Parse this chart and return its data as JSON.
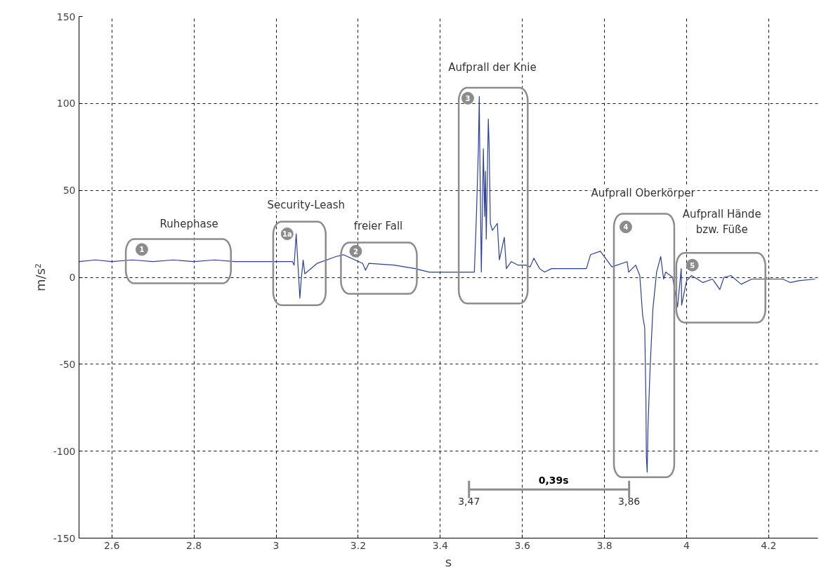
{
  "chart_data": {
    "type": "line",
    "xlabel": "s",
    "ylabel": "m/s²",
    "xlim": [
      2.52,
      4.32
    ],
    "ylim": [
      -150,
      150
    ],
    "xticks": [
      2.6,
      2.8,
      3,
      3.2,
      3.4,
      3.6,
      3.8,
      4,
      4.2
    ],
    "yticks": [
      -150,
      -100,
      -50,
      0,
      50,
      100,
      150
    ],
    "grid": true,
    "line_style": "solid",
    "marker": "none",
    "series": [
      {
        "color": "#2b3ea0",
        "x": [
          2.52,
          2.56,
          2.6,
          2.65,
          2.7,
          2.75,
          2.8,
          2.85,
          2.9,
          2.95,
          3.0,
          3.04,
          3.044,
          3.049,
          3.058,
          3.061,
          3.066,
          3.07,
          3.075,
          3.1,
          3.147,
          3.164,
          3.211,
          3.218,
          3.226,
          3.288,
          3.339,
          3.373,
          3.42,
          3.483,
          3.488,
          3.493,
          3.495,
          3.496,
          3.5,
          3.505,
          3.508,
          3.51,
          3.512,
          3.517,
          3.519,
          3.522,
          3.527,
          3.539,
          3.544,
          3.556,
          3.561,
          3.573,
          3.59,
          3.608,
          3.619,
          3.628,
          3.642,
          3.654,
          3.671,
          3.72,
          3.756,
          3.766,
          3.79,
          3.818,
          3.855,
          3.859,
          3.876,
          3.886,
          3.893,
          3.898,
          3.901,
          3.902,
          3.904,
          3.906,
          3.911,
          3.918,
          3.927,
          3.937,
          3.944,
          3.949,
          3.966,
          3.978,
          3.987,
          3.988,
          4.0,
          4.012,
          4.04,
          4.063,
          4.081,
          4.091,
          4.108,
          4.133,
          4.159,
          4.188,
          4.234,
          4.253,
          4.273,
          4.313
        ],
        "values": [
          9,
          10,
          9,
          10,
          9,
          10,
          9,
          10,
          9,
          9,
          9,
          9,
          7,
          25,
          -12,
          -2,
          10,
          2,
          3,
          8,
          12,
          13,
          8,
          4,
          8,
          7,
          5,
          3,
          3,
          3,
          35,
          76,
          104,
          78,
          3,
          74,
          35,
          61,
          22,
          91,
          76,
          31,
          27,
          31,
          10,
          23,
          5,
          9,
          7,
          7,
          6,
          11,
          5,
          3,
          5,
          5,
          5,
          13,
          15,
          6,
          9,
          3,
          7,
          1,
          -22,
          -29,
          -71,
          -103,
          -112,
          -86,
          -53,
          -18,
          3,
          12,
          -1,
          3,
          0,
          -17,
          5,
          -16,
          -2,
          1,
          -3,
          -1,
          -7,
          0,
          1,
          -4,
          -1,
          -1,
          -1,
          -3,
          -2,
          -1
        ]
      }
    ],
    "annotations": [
      "Ruhephase",
      "1",
      "Security-Leash",
      "1a",
      "freier Fall",
      "2",
      "Aufprall der Knie",
      "3",
      "Aufprall Oberkörper",
      "4",
      "Aufprall Hände\nbzw. Füße",
      "5",
      "0,39s",
      "3,47",
      "3,86"
    ]
  }
}
